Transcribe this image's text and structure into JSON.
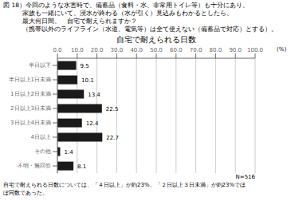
{
  "chart_data": {
    "type": "bar",
    "orientation": "horizontal",
    "title": "自宅で耐えられる日数",
    "categories": [
      "半日以下",
      "半日以上1日未満",
      "1日以上2日未満",
      "2日以上3日未満",
      "3日以上4日未満",
      "4日以上",
      "その他",
      "不明・無回答"
    ],
    "values": [
      9.5,
      10.1,
      13.4,
      22.5,
      12.4,
      22.7,
      1.4,
      8.1
    ],
    "color": "#1a1a1a",
    "xlim": [
      0,
      100
    ],
    "xticks": [
      {
        "value": 0,
        "label": "0.0"
      },
      {
        "value": 10,
        "label": "10.0"
      },
      {
        "value": 20,
        "label": "20.0"
      },
      {
        "value": 30,
        "label": "30.0"
      },
      {
        "value": 40,
        "label": "40.0"
      },
      {
        "value": 50,
        "label": "50.0"
      },
      {
        "value": 60,
        "label": "60.0"
      },
      {
        "value": 70,
        "label": "70.0"
      },
      {
        "value": 80,
        "label": "80.0"
      },
      {
        "value": 90,
        "label": "90.0"
      },
      {
        "value": 100,
        "label": "100.0"
      }
    ],
    "grid": true,
    "data_labels": true,
    "unit_label": "(%)",
    "n_label": "N=516",
    "header": [
      "図 18）今回のような水害時で、備蓄品（食料・水、非常用トイレ等）も十分にあり、",
      "　　　家族も一緒にいて、浸水が終わる（水が引く）見込みもわかるとしたら、",
      "　　　最大何日間、　自宅で耐えられますか？",
      "　　　（携帯以外のライフライン（水道、電気等）は全て使えない（備蓄品で対応）とする）。"
    ],
    "footer": [
      "自宅で耐えられる日数については、「４日以上」が約23%、「２日以上３日未満」が約23%でほ",
      "ぼ同数であった。"
    ]
  }
}
